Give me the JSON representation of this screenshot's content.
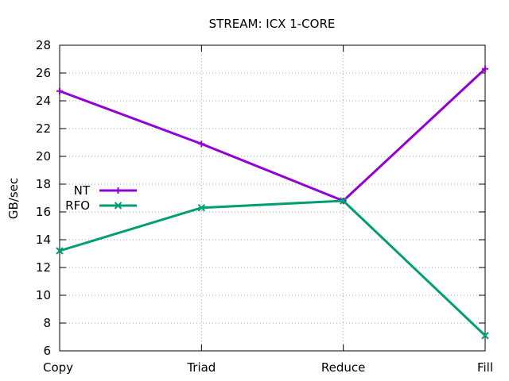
{
  "chart_data": {
    "type": "line",
    "title": "STREAM: ICX 1-CORE",
    "xlabel": "",
    "ylabel": "GB/sec",
    "categories": [
      "Copy",
      "Triad",
      "Reduce",
      "Fill"
    ],
    "ylim": [
      6,
      28
    ],
    "yticks": [
      6,
      8,
      10,
      12,
      14,
      16,
      18,
      20,
      22,
      24,
      26,
      28
    ],
    "grid": true,
    "legend_position": "left",
    "series": [
      {
        "name": "NT",
        "values": [
          24.7,
          20.9,
          16.8,
          26.3
        ],
        "color": "#9400d3",
        "marker": "plus"
      },
      {
        "name": "RFO",
        "values": [
          13.2,
          16.3,
          16.8,
          7.1
        ],
        "color": "#009e73",
        "marker": "cross"
      }
    ]
  }
}
